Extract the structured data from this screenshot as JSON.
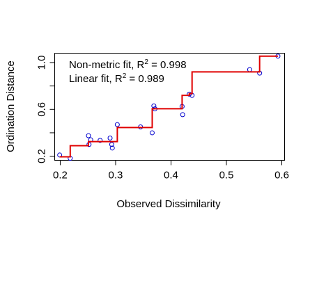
{
  "chart_data": {
    "type": "scatter",
    "title": "",
    "xlabel": "Observed Dissimilarity",
    "ylabel": "Ordination Distance",
    "xlim": [
      0.19,
      0.605
    ],
    "ylim": [
      0.165,
      1.08
    ],
    "xticks": [
      0.2,
      0.3,
      0.4,
      0.5,
      0.6
    ],
    "xtick_labels": [
      "0.2",
      "0.3",
      "0.4",
      "0.5",
      "0.6"
    ],
    "yticks": [
      0.2,
      0.6,
      1.0
    ],
    "ytick_labels": [
      "0.2",
      "0.6",
      "1.0"
    ],
    "grid": false,
    "point_color": "#0000cd",
    "line_color": "#e00000",
    "annotations": {
      "nonmetric_prefix": "Non-metric fit, R",
      "nonmetric_sup": "2",
      "nonmetric_value": " = 0.998",
      "linear_prefix": "Linear fit, R",
      "linear_sup": "2",
      "linear_value": " = 0.989"
    },
    "points": {
      "x": [
        0.199,
        0.218,
        0.251,
        0.252,
        0.255,
        0.272,
        0.29,
        0.293,
        0.294,
        0.303,
        0.345,
        0.366,
        0.369,
        0.371,
        0.42,
        0.421,
        0.433,
        0.438,
        0.542,
        0.56,
        0.593
      ],
      "y": [
        0.21,
        0.182,
        0.375,
        0.3,
        0.34,
        0.335,
        0.355,
        0.3,
        0.27,
        0.47,
        0.45,
        0.4,
        0.63,
        0.605,
        0.625,
        0.555,
        0.73,
        0.72,
        0.94,
        0.91,
        1.055
      ]
    },
    "step_line": {
      "x": [
        0.199,
        0.218,
        0.218,
        0.251,
        0.251,
        0.303,
        0.303,
        0.366,
        0.366,
        0.42,
        0.42,
        0.433,
        0.433,
        0.438,
        0.438,
        0.56,
        0.56,
        0.593
      ],
      "y": [
        0.195,
        0.195,
        0.29,
        0.29,
        0.325,
        0.325,
        0.445,
        0.445,
        0.605,
        0.605,
        0.72,
        0.72,
        0.735,
        0.735,
        0.92,
        0.92,
        1.055,
        1.055
      ]
    }
  }
}
